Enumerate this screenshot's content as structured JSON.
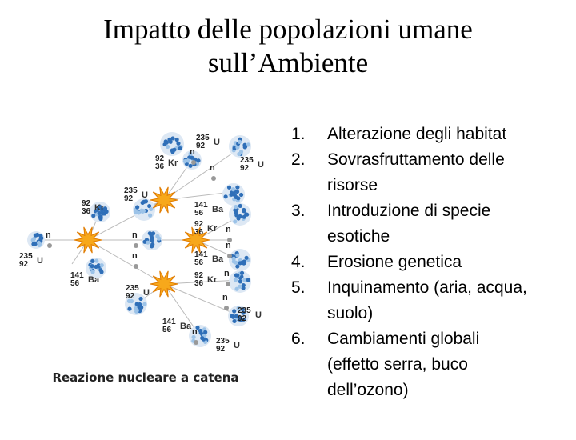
{
  "slide": {
    "title": [
      "Impatto delle popolazioni umane",
      "sull’Ambiente"
    ],
    "list": [
      "Alterazione degli habitat",
      "Sovrasfruttamento delle risorse",
      "Introduzione di specie esotiche",
      "Erosione genetica",
      "Inquinamento (aria, acqua, suolo)",
      "Cambiamenti globali (effetto serra, buco dell’ozono)"
    ],
    "figure": {
      "caption": "Reazione nucleare a catena",
      "nuclides": [
        {
          "a": "235",
          "z": "92",
          "symbol": "U"
        },
        {
          "a": "92",
          "z": "36",
          "symbol": "Kr"
        },
        {
          "a": "235",
          "z": "92",
          "symbol": "U"
        },
        {
          "a": "235",
          "z": "92",
          "symbol": "U"
        },
        {
          "a": "92",
          "z": "36",
          "symbol": "Kr"
        },
        {
          "a": "141",
          "z": "56",
          "symbol": "Ba"
        },
        {
          "a": "92",
          "z": "36",
          "symbol": "Kr"
        },
        {
          "a": "235",
          "z": "92",
          "symbol": "U"
        },
        {
          "a": "141",
          "z": "56",
          "symbol": "Ba"
        },
        {
          "a": "141",
          "z": "56",
          "symbol": "Ba"
        },
        {
          "a": "92",
          "z": "36",
          "symbol": "Kr"
        },
        {
          "a": "235",
          "z": "92",
          "symbol": "U"
        },
        {
          "a": "235",
          "z": "92",
          "symbol": "U"
        },
        {
          "a": "141",
          "z": "56",
          "symbol": "Ba"
        },
        {
          "a": "235",
          "z": "92",
          "symbol": "U"
        }
      ],
      "neutrons": [
        "n",
        "n",
        "n",
        "n",
        "n",
        "n",
        "n",
        "n",
        "n",
        "n"
      ]
    }
  }
}
